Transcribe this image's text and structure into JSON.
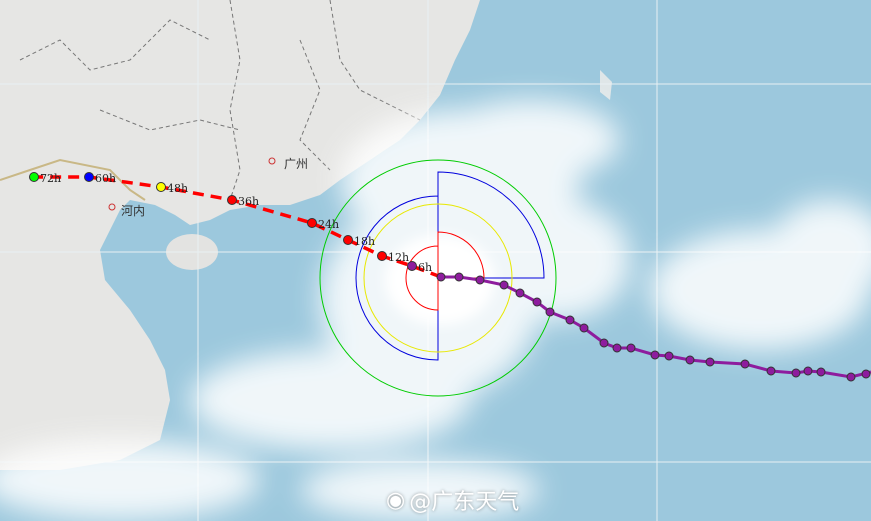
{
  "map": {
    "cities": [
      {
        "name": "广州"
      },
      {
        "name": "河内"
      }
    ],
    "forecast_points": [
      {
        "label": "6h",
        "color": "#8e1c9e"
      },
      {
        "label": "12h",
        "color": "#ff0000"
      },
      {
        "label": "18h",
        "color": "#ff0000"
      },
      {
        "label": "24h",
        "color": "#ff0000"
      },
      {
        "label": "36h",
        "color": "#ff0000"
      },
      {
        "label": "48h",
        "color": "#ffff00"
      },
      {
        "label": "60h",
        "color": "#0000ff"
      },
      {
        "label": "72h",
        "color": "#00ff00"
      }
    ],
    "colors": {
      "ocean": "#9cc8dd",
      "land": "#e6e6e4",
      "past_track": "#8e1c9e",
      "forecast_track": "#ff0000",
      "wind_circle_outer": "#00cc00",
      "wind_circle_blue": "#0000dd",
      "wind_circle_yellow": "#ffff00",
      "wind_circle_red": "#ff0000"
    }
  },
  "watermark": {
    "icon": "weibo-icon",
    "text": "@广东天气"
  }
}
